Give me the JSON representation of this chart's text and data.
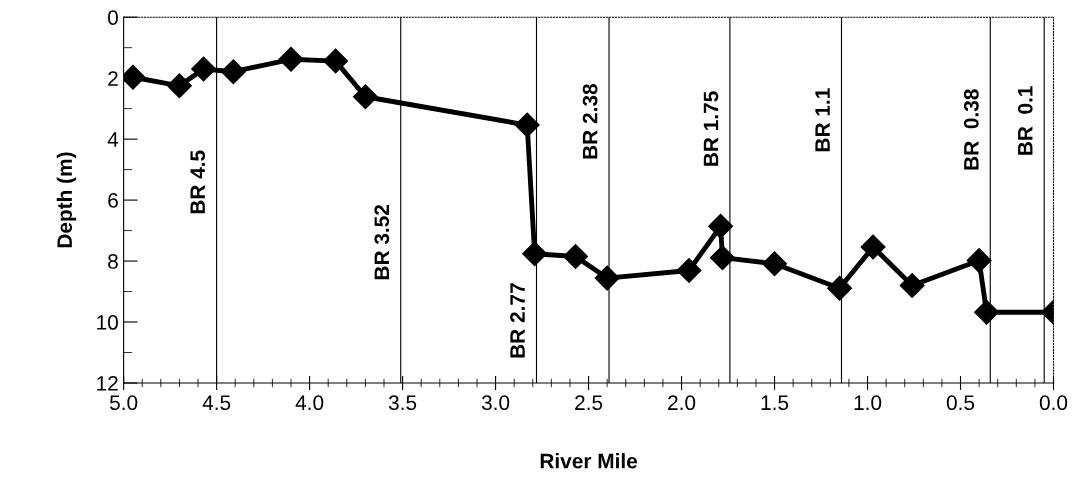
{
  "chart_data": {
    "type": "line",
    "xlabel": "River Mile",
    "ylabel": "Depth (m)",
    "x": [
      4.95,
      4.7,
      4.57,
      4.41,
      4.1,
      3.86,
      3.7,
      2.83,
      2.79,
      2.57,
      2.4,
      1.96,
      1.79,
      1.78,
      1.5,
      1.15,
      0.97,
      0.76,
      0.4,
      0.36,
      0.0
    ],
    "series": [
      {
        "color": "#000000",
        "values": [
          1.97,
          2.25,
          1.7,
          1.79,
          1.38,
          1.44,
          2.61,
          3.54,
          7.76,
          7.85,
          8.56,
          8.31,
          6.86,
          7.89,
          8.09,
          8.89,
          7.54,
          8.8,
          7.98,
          9.68,
          9.68
        ]
      }
    ],
    "marker": "diamond",
    "line_style": "solid",
    "grid": false,
    "xlim": [
      5.0,
      0.0
    ],
    "xticks": [
      {
        "value": 5,
        "label": "5.0"
      },
      {
        "value": 4.5,
        "label": "4.5"
      },
      {
        "value": 4,
        "label": "4.0"
      },
      {
        "value": 3.5,
        "label": "3.5"
      },
      {
        "value": 3,
        "label": "3.0"
      },
      {
        "value": 2.5,
        "label": "2.5"
      },
      {
        "value": 2,
        "label": "2.0"
      },
      {
        "value": 1.5,
        "label": "1.5"
      },
      {
        "value": 1,
        "label": "1.0"
      },
      {
        "value": 0.5,
        "label": "0.5"
      },
      {
        "value": 0,
        "label": "0.0"
      }
    ],
    "ylim": [
      12,
      0
    ],
    "yticks": [
      0,
      2,
      4,
      6,
      8,
      10,
      12
    ],
    "ref_lines": [
      {
        "axis": "x",
        "value": 4.5,
        "label": "BR 4.5",
        "color": "#000000"
      },
      {
        "axis": "x",
        "value": 3.51,
        "label": "BR 3.52",
        "color": "#000000"
      },
      {
        "axis": "x",
        "value": 2.78,
        "label": "BR 2.77",
        "color": "#000000"
      },
      {
        "axis": "x",
        "value": 2.39,
        "label": "BR 2.38",
        "color": "#000000"
      },
      {
        "axis": "x",
        "value": 1.74,
        "label": "BR 1.75",
        "color": "#000000"
      },
      {
        "axis": "x",
        "value": 1.14,
        "label": "BR 1.1",
        "color": "#000000"
      },
      {
        "axis": "x",
        "value": 0.34,
        "label": "BR  0.38",
        "color": "#000000"
      },
      {
        "axis": "x",
        "value": 0.05,
        "label": "BR  0.1",
        "color": "#000000"
      }
    ]
  }
}
